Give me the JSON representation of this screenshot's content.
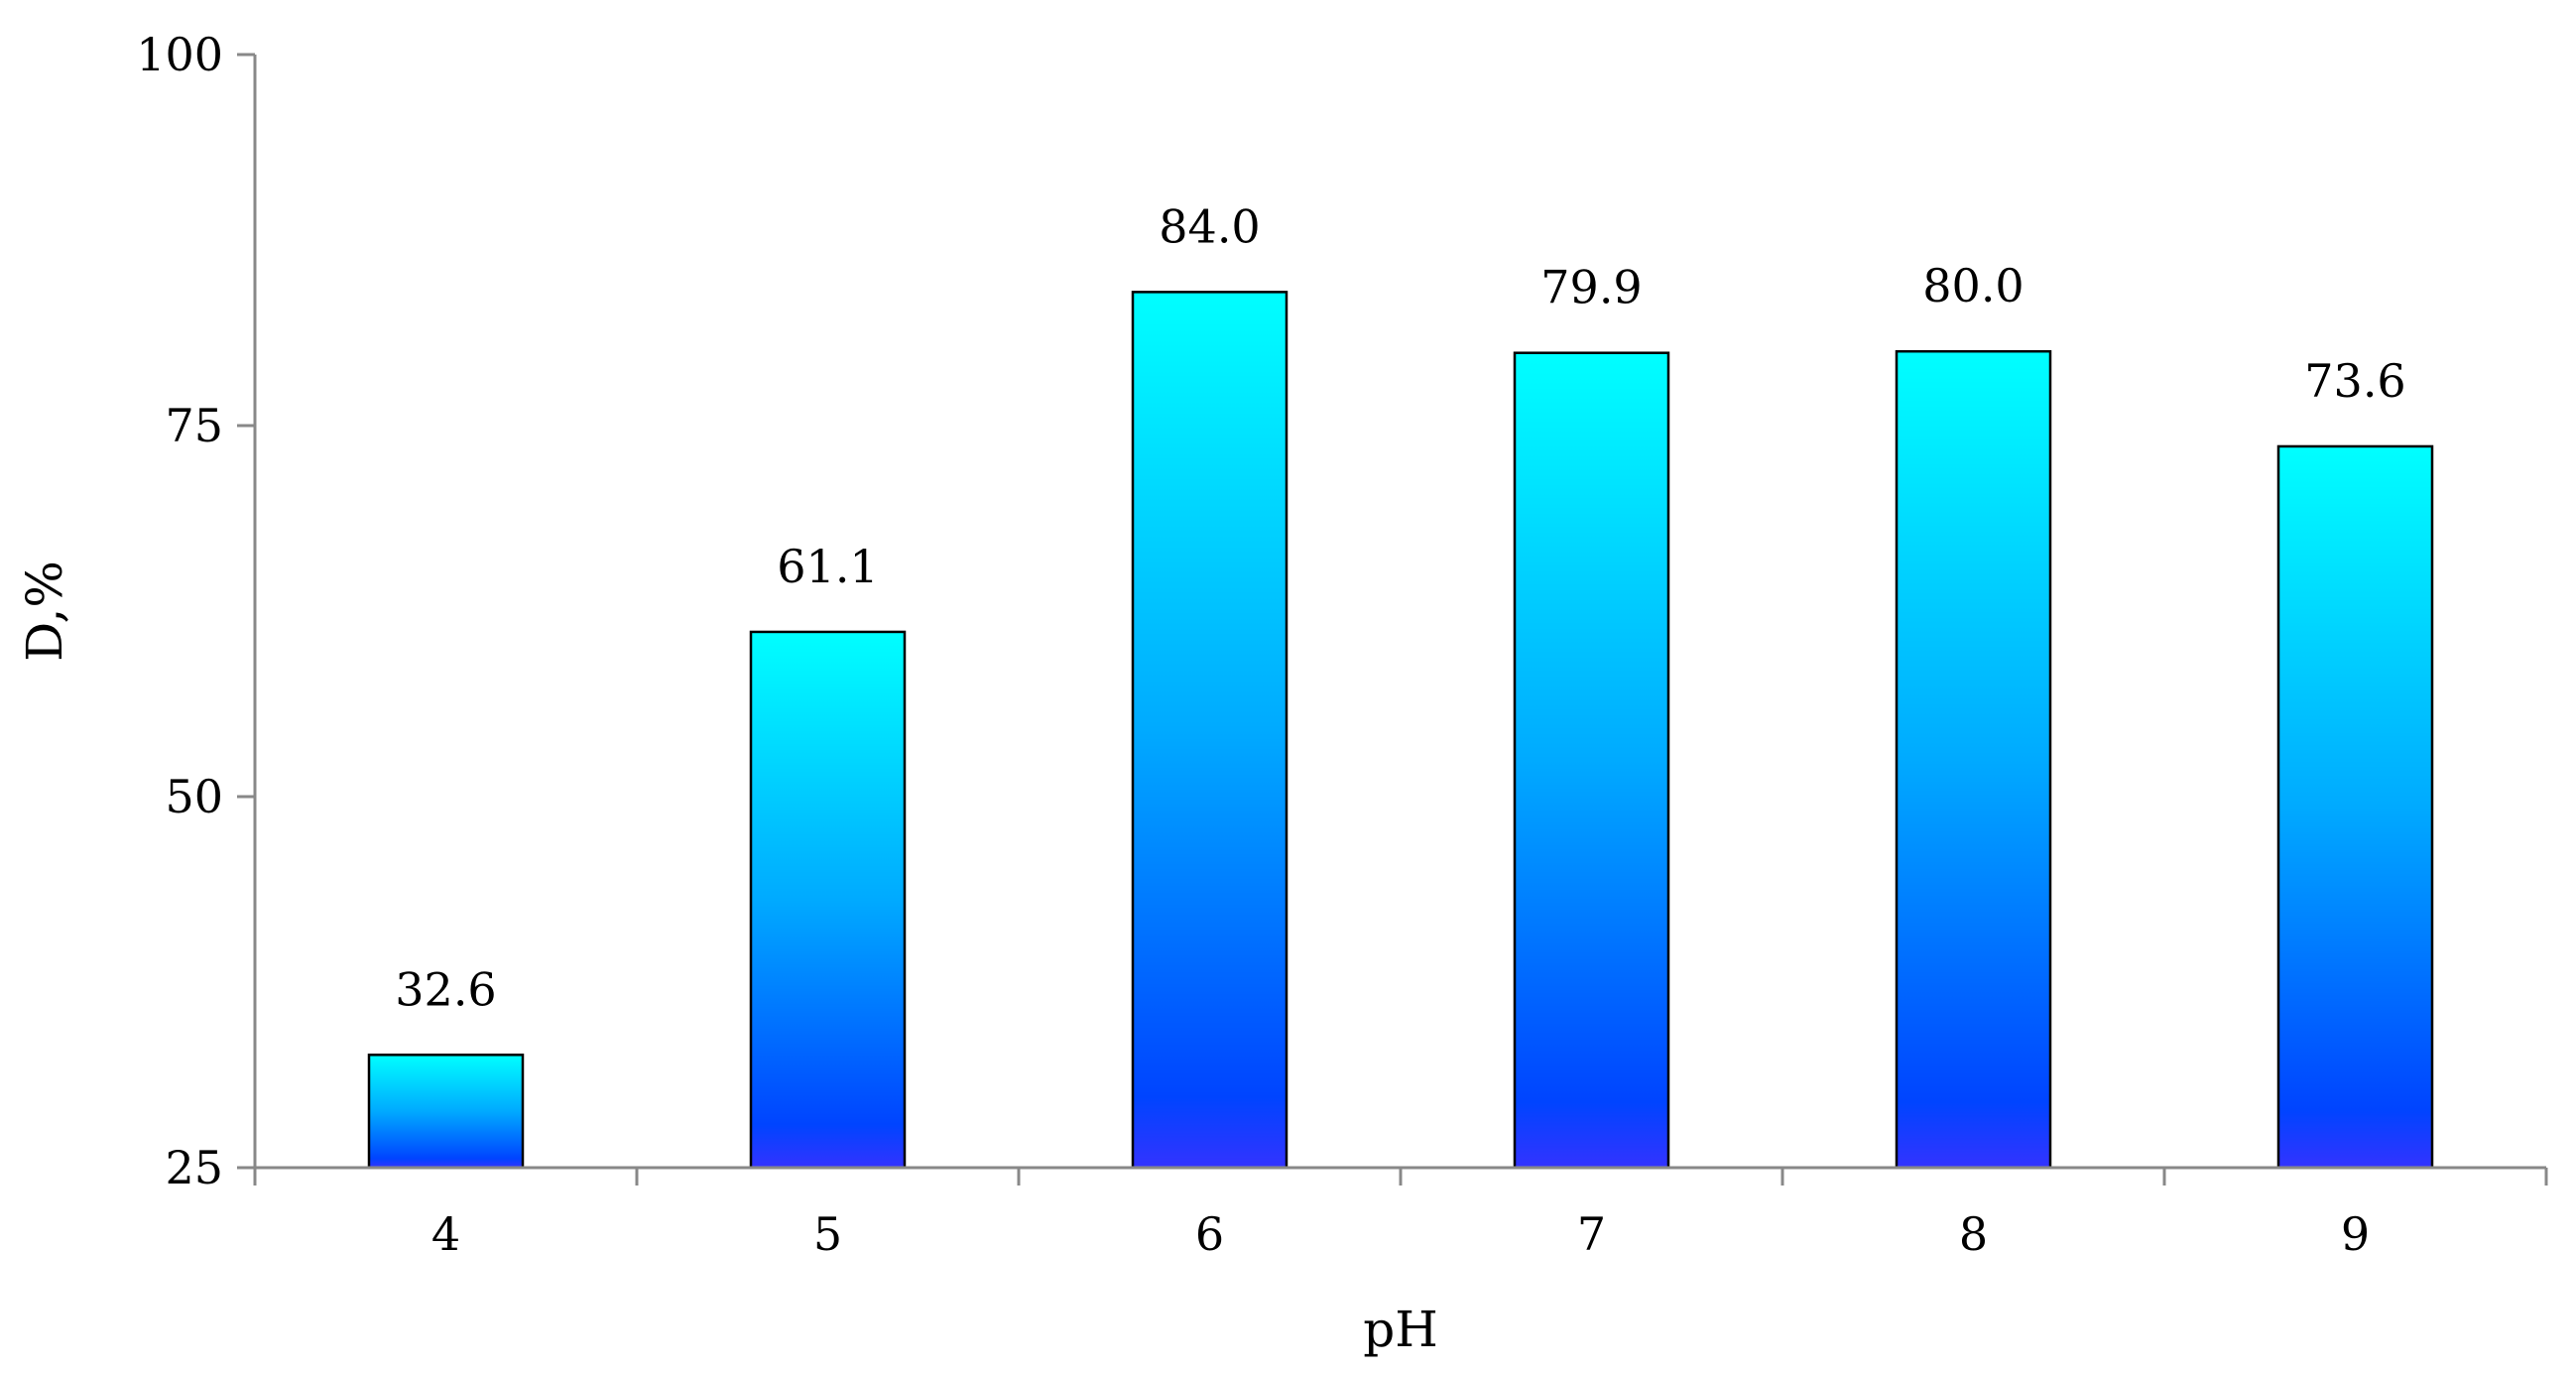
{
  "chart_data": {
    "type": "bar",
    "categories": [
      "4",
      "5",
      "6",
      "7",
      "8",
      "9"
    ],
    "values": [
      32.6,
      61.1,
      84.0,
      79.9,
      80.0,
      73.6
    ],
    "value_labels": [
      "32.6",
      "61.1",
      "84.0",
      "79.9",
      "80.0",
      "73.6"
    ],
    "title": "",
    "xlabel": "pH",
    "ylabel": "D,%",
    "ylim": [
      25,
      100
    ],
    "yticks": [
      25,
      50,
      75,
      100
    ],
    "ytick_labels": [
      "25",
      "50",
      "75",
      "100"
    ],
    "grid": false,
    "legend": "none",
    "colors": {
      "bar_top": "#00FFFF",
      "bar_mid": "#00AAFF",
      "bar_low": "#0044FF",
      "bar_bottom": "#3333FF",
      "outline": "#000000",
      "axis": "#888888"
    }
  }
}
